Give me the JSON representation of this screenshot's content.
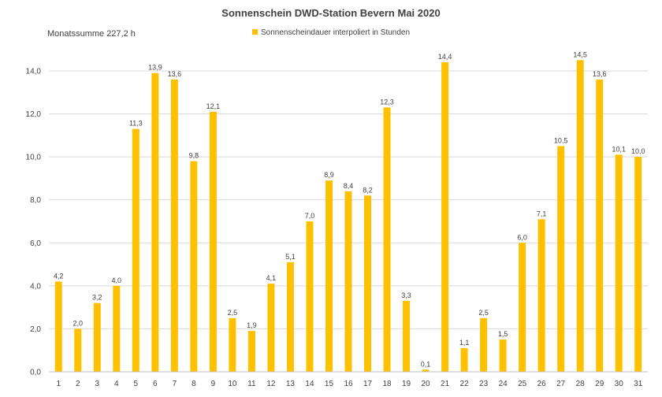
{
  "chart_data": {
    "type": "bar",
    "title": "Sonnenschein DWD-Station Bevern Mai 2020",
    "annotation": "Monatssumme 227,2 h",
    "legend": "Sonnenscheindauer interpoliert in Stunden",
    "legend_position": "top-center",
    "bar_color": "#FFC000",
    "categories": [
      "1",
      "2",
      "3",
      "4",
      "5",
      "6",
      "7",
      "8",
      "9",
      "10",
      "11",
      "12",
      "13",
      "14",
      "15",
      "16",
      "17",
      "18",
      "19",
      "20",
      "21",
      "22",
      "23",
      "24",
      "25",
      "26",
      "27",
      "28",
      "29",
      "30",
      "31"
    ],
    "values": [
      4.2,
      2.0,
      3.2,
      4.0,
      11.3,
      13.9,
      13.6,
      9.8,
      12.1,
      2.5,
      1.9,
      4.1,
      5.1,
      7.0,
      8.9,
      8.4,
      8.2,
      12.3,
      3.3,
      0.1,
      14.4,
      1.1,
      2.5,
      1.5,
      6.0,
      7.1,
      10.5,
      14.5,
      13.6,
      10.1,
      10.0
    ],
    "value_labels": [
      "4,2",
      "2,0",
      "3,2",
      "4,0",
      "11,3",
      "13,9",
      "13,6",
      "9,8",
      "12,1",
      "2,5",
      "1,9",
      "4,1",
      "5,1",
      "7,0",
      "8,9",
      "8,4",
      "8,2",
      "12,3",
      "3,3",
      "0,1",
      "14,4",
      "1,1",
      "2,5",
      "1,5",
      "6,0",
      "7,1",
      "10,5",
      "14,5",
      "13,6",
      "10,1",
      "10,0"
    ],
    "y_ticks": [
      "0,0",
      "2,0",
      "4,0",
      "6,0",
      "8,0",
      "10,0",
      "12,0",
      "14,0"
    ],
    "ylim": [
      0,
      14
    ],
    "xlabel": "",
    "ylabel": "",
    "grid": true
  }
}
